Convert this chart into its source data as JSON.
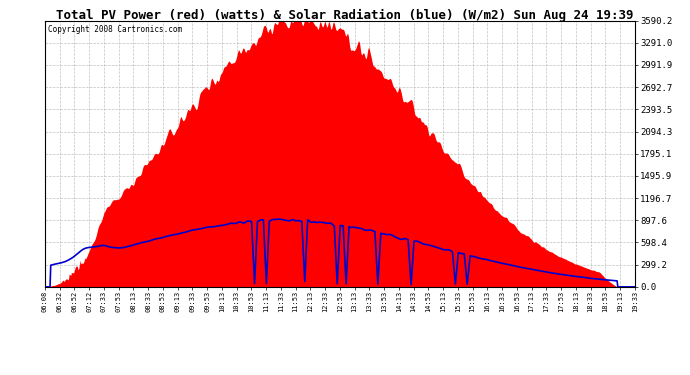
{
  "title": "Total PV Power (red) (watts) & Solar Radiation (blue) (W/m2) Sun Aug 24 19:39",
  "copyright": "Copyright 2008 Cartronics.com",
  "bg_color": "#ffffff",
  "plot_bg_color": "#ffffff",
  "grid_color": "#bbbbbb",
  "ytick_labels": [
    "0.0",
    "299.2",
    "598.4",
    "897.6",
    "1196.7",
    "1495.9",
    "1795.1",
    "2094.3",
    "2393.5",
    "2692.7",
    "2991.9",
    "3291.0",
    "3590.2"
  ],
  "ytick_values": [
    0.0,
    299.2,
    598.4,
    897.6,
    1196.7,
    1495.9,
    1795.1,
    2094.3,
    2393.5,
    2692.7,
    2991.9,
    3291.0,
    3590.2
  ],
  "ymax": 3590.2,
  "ymin": 0.0,
  "pv_color": "#ff0000",
  "solar_color": "#0000cc",
  "xtick_labels": [
    "06:08",
    "06:32",
    "06:52",
    "07:12",
    "07:33",
    "07:53",
    "08:13",
    "08:33",
    "08:53",
    "09:13",
    "09:33",
    "09:53",
    "10:13",
    "10:33",
    "10:53",
    "11:13",
    "11:33",
    "11:53",
    "12:13",
    "12:33",
    "12:53",
    "13:13",
    "13:33",
    "13:53",
    "14:13",
    "14:33",
    "14:53",
    "15:13",
    "15:33",
    "15:53",
    "16:13",
    "16:33",
    "16:53",
    "17:13",
    "17:33",
    "17:53",
    "18:13",
    "18:33",
    "18:53",
    "19:13",
    "19:33"
  ],
  "peak_pv": 3590,
  "peak_solar": 897.6,
  "solar_dip_times": [
    0.355,
    0.375,
    0.44,
    0.495,
    0.51,
    0.565,
    0.62,
    0.695,
    0.715
  ],
  "solar_dip_depths": [
    0.05,
    0.05,
    0.08,
    0.05,
    0.05,
    0.05,
    0.05,
    0.08,
    0.08
  ]
}
